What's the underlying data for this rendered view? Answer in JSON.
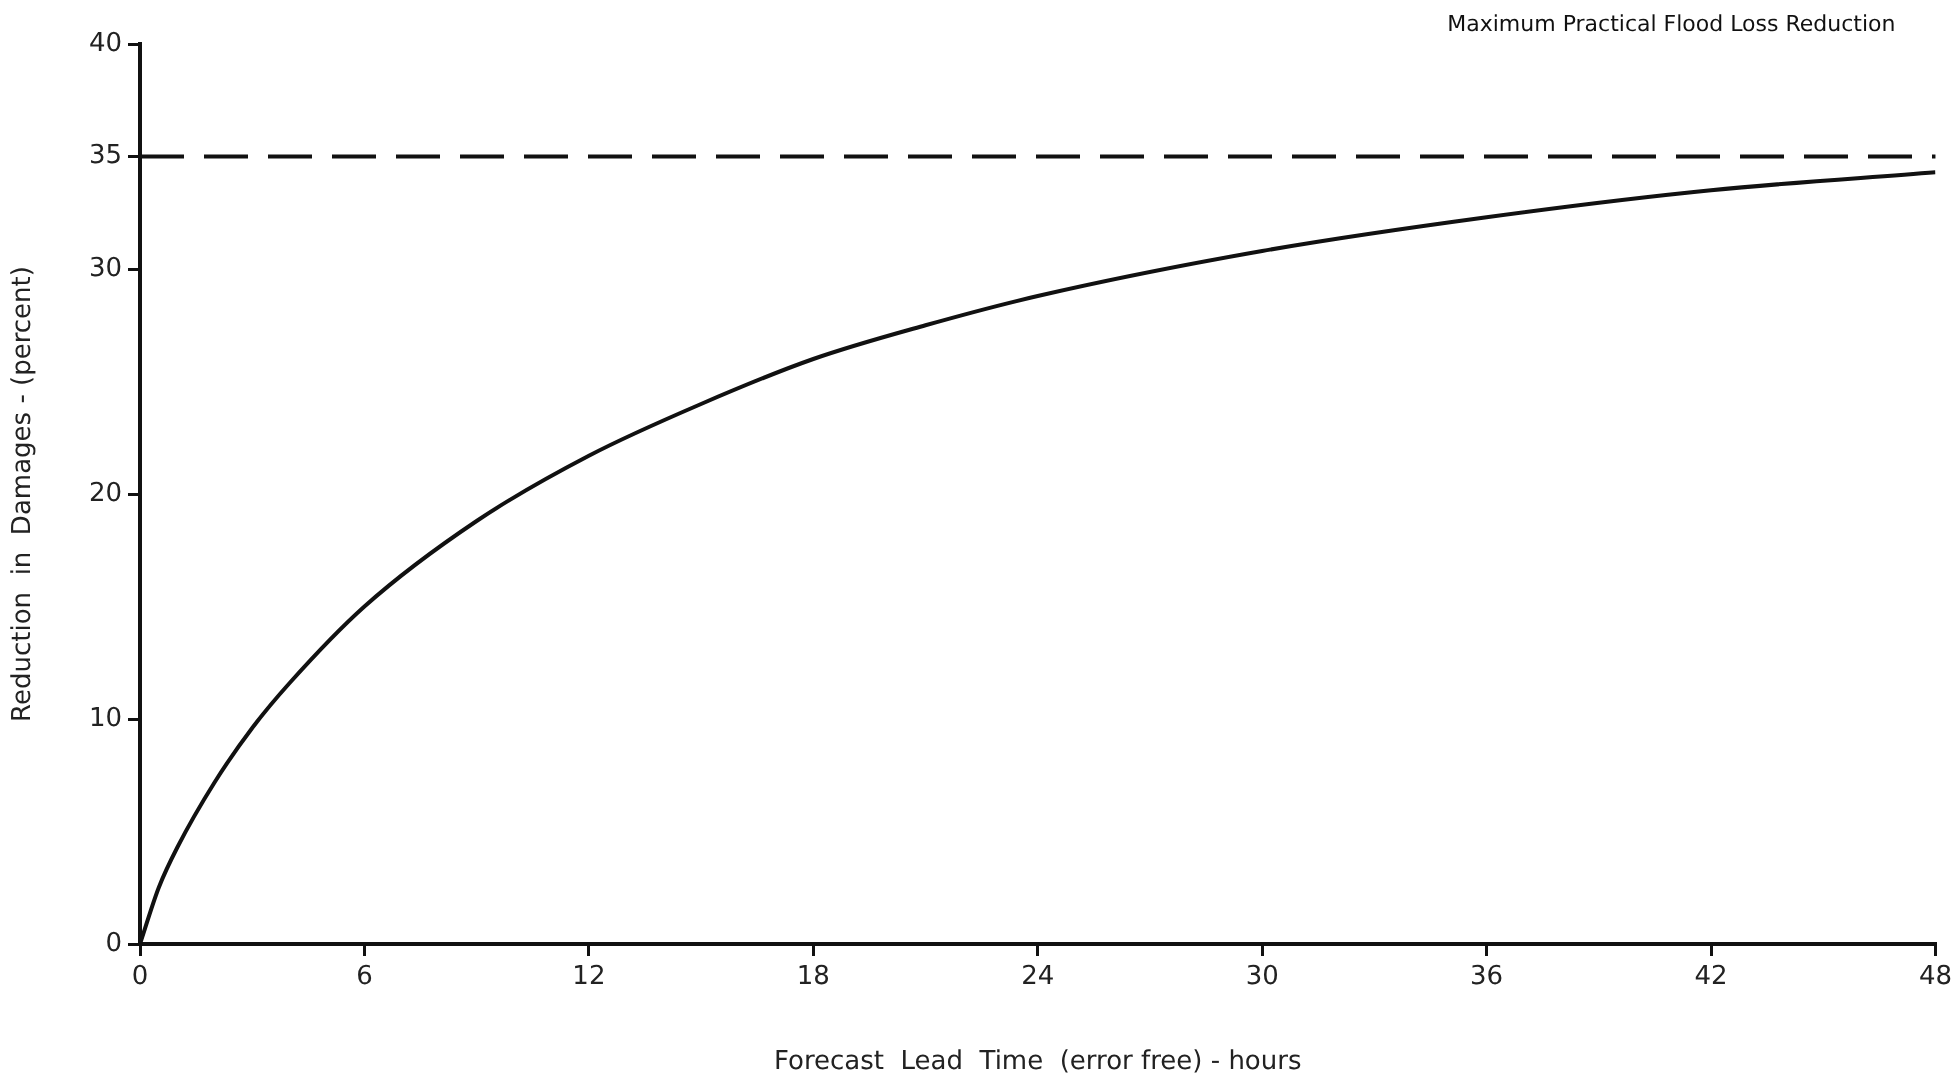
{
  "chart_data": {
    "type": "line",
    "xlabel": "Forecast  Lead  Time  (error free) - hours",
    "ylabel": "Reduction  in  Damages - (percent)",
    "x": [
      0,
      0.5,
      1,
      2,
      3,
      4,
      6,
      9,
      12,
      15,
      18,
      21,
      24,
      30,
      36,
      42,
      48
    ],
    "series": [
      {
        "color": "#111111",
        "values": [
          0,
          2.5,
          4.3,
          7.2,
          9.6,
          11.6,
          15,
          18.8,
          21.7,
          24,
          26,
          27.5,
          28.8,
          30.8,
          32.3,
          33.5,
          34.3
        ]
      }
    ],
    "xlim": [
      0,
      48
    ],
    "xticks": [
      0,
      6,
      12,
      18,
      24,
      30,
      36,
      42,
      48
    ],
    "ylim": [
      0,
      40
    ],
    "yticks": [
      0,
      10,
      20,
      30,
      35,
      40
    ],
    "ref_lines": [
      {
        "axis": "y",
        "value": 35,
        "label": "Maximum Practical Flood Loss Reduction",
        "color": "#111111",
        "line_style": "dashed"
      }
    ],
    "grid": false,
    "legend": false,
    "marker": "none",
    "line_style": "solid"
  }
}
